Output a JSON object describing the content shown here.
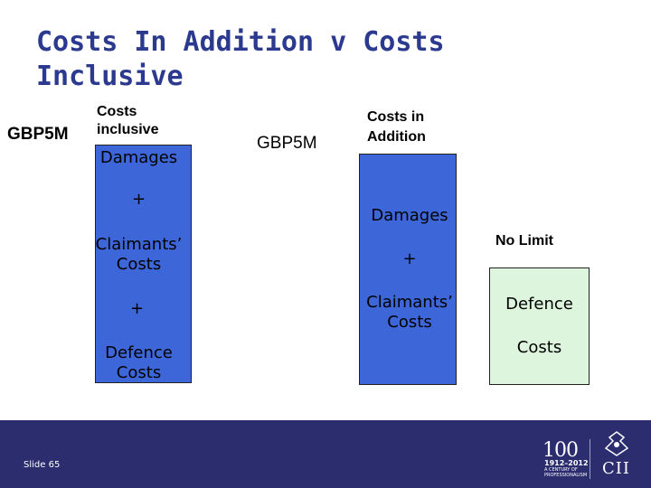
{
  "slide": {
    "title": "Costs In Addition v Costs\nInclusive",
    "slide_number": "Slide 65"
  },
  "left": {
    "amount_label": "GBP5M",
    "header": "Costs\ninclusive",
    "box_items": [
      "Damages",
      "+",
      "Claimants’\nCosts",
      "+",
      "Defence\nCosts"
    ]
  },
  "right": {
    "amount_label": "GBP5M",
    "header": "Costs in\nAddition",
    "box_items": [
      "Damages",
      "+",
      "Claimants’\nCosts"
    ],
    "no_limit_label": "No Limit",
    "defence_box_items": [
      "Defence",
      "Costs"
    ]
  },
  "logo": {
    "number": "100",
    "years": "1912–2012",
    "tagline": "A CENTURY OF PROFESSIONALISM",
    "brand": "CII"
  },
  "colors": {
    "title": "#2b3a8f",
    "box_blue": "#3d67d8",
    "box_green": "#ddf5dd",
    "footer": "#2b2d6e"
  }
}
